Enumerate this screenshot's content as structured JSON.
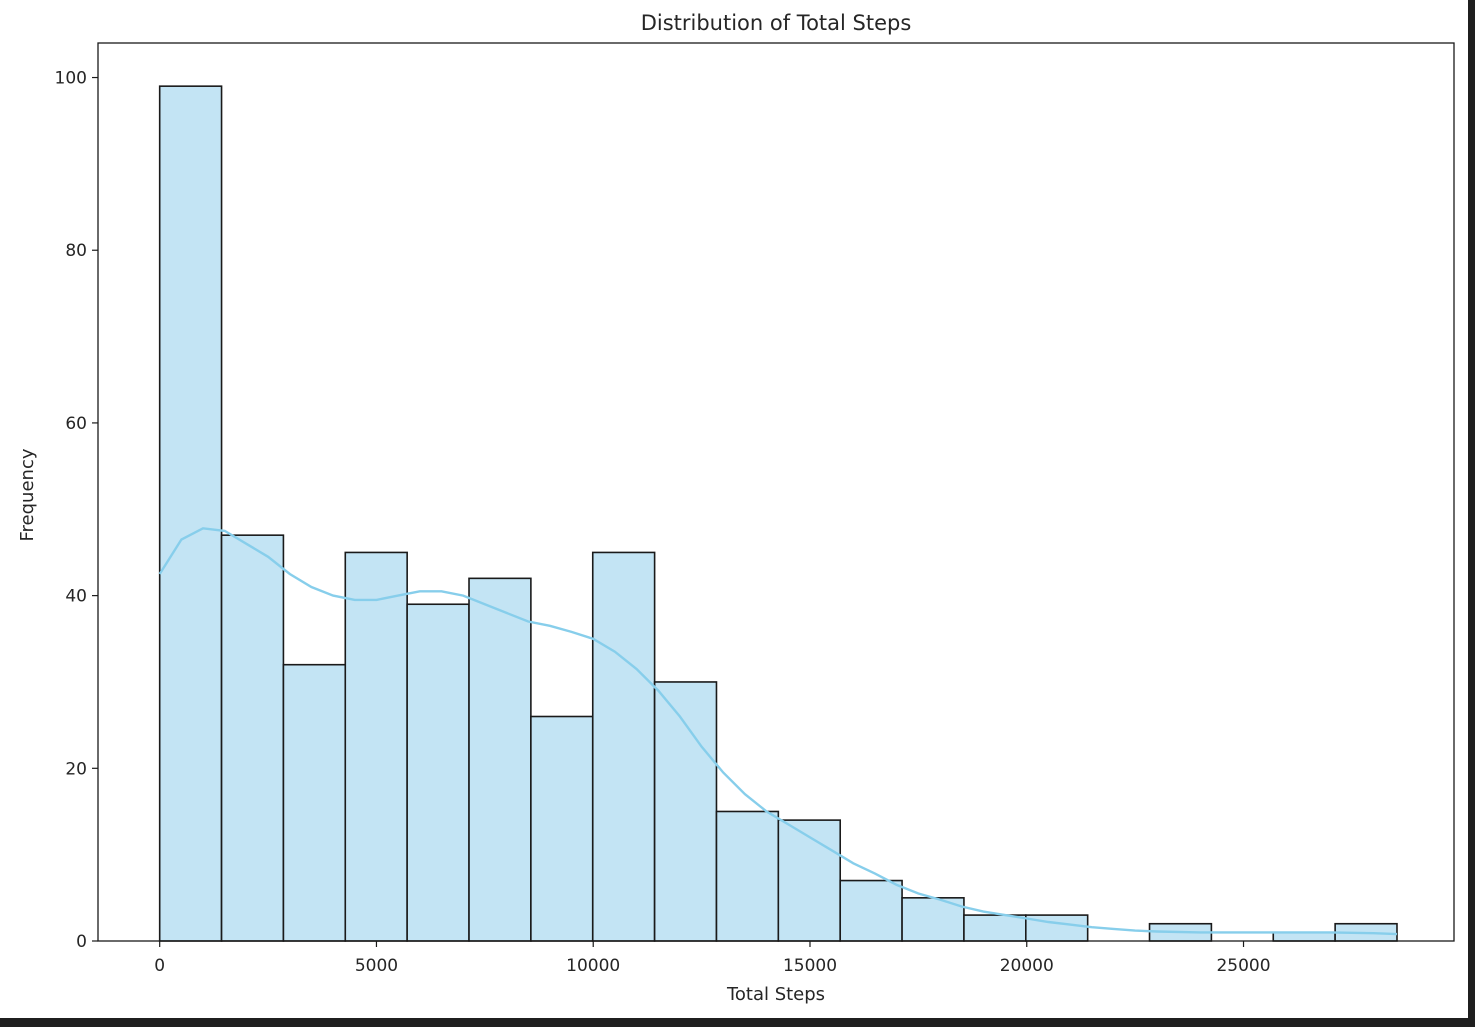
{
  "chart_data": {
    "type": "bar",
    "title": "Distribution of Total Steps",
    "xlabel": "Total Steps",
    "ylabel": "Frequency",
    "xlim": [
      -1423,
      29855
    ],
    "ylim": [
      0,
      104
    ],
    "xticks": [
      0,
      5000,
      10000,
      15000,
      20000,
      25000
    ],
    "yticks": [
      0,
      20,
      40,
      60,
      80,
      100
    ],
    "grid": false,
    "bin_width": 1427,
    "bins": [
      {
        "start": 0,
        "end": 1427,
        "count": 99
      },
      {
        "start": 1427,
        "end": 2854,
        "count": 47
      },
      {
        "start": 2854,
        "end": 4281,
        "count": 32
      },
      {
        "start": 4281,
        "end": 5708,
        "count": 45
      },
      {
        "start": 5708,
        "end": 7135,
        "count": 39
      },
      {
        "start": 7135,
        "end": 8562,
        "count": 42
      },
      {
        "start": 8562,
        "end": 9989,
        "count": 26
      },
      {
        "start": 9989,
        "end": 11416,
        "count": 45
      },
      {
        "start": 11416,
        "end": 12843,
        "count": 30
      },
      {
        "start": 12843,
        "end": 14270,
        "count": 15
      },
      {
        "start": 14270,
        "end": 15697,
        "count": 14
      },
      {
        "start": 15697,
        "end": 17124,
        "count": 7
      },
      {
        "start": 17124,
        "end": 18551,
        "count": 5
      },
      {
        "start": 18551,
        "end": 19978,
        "count": 3
      },
      {
        "start": 19978,
        "end": 21405,
        "count": 3
      },
      {
        "start": 21405,
        "end": 22832,
        "count": 0
      },
      {
        "start": 22832,
        "end": 24259,
        "count": 2
      },
      {
        "start": 24259,
        "end": 25686,
        "count": 0
      },
      {
        "start": 25686,
        "end": 27113,
        "count": 1
      },
      {
        "start": 27113,
        "end": 28540,
        "count": 2
      }
    ],
    "kde": {
      "x": [
        0,
        500,
        1000,
        1500,
        2000,
        2500,
        3000,
        3500,
        4000,
        4500,
        5000,
        5500,
        6000,
        6500,
        7000,
        7500,
        8000,
        8500,
        9000,
        9500,
        10000,
        10500,
        11000,
        11500,
        12000,
        12500,
        13000,
        13500,
        14000,
        14500,
        15000,
        15500,
        16000,
        16500,
        17000,
        17500,
        18000,
        18500,
        19000,
        19500,
        20000,
        20500,
        21000,
        21500,
        22000,
        22500,
        23000,
        24000,
        25000,
        26000,
        27000,
        28000,
        28540
      ],
      "y": [
        42.5,
        46.5,
        47.8,
        47.5,
        46.0,
        44.5,
        42.5,
        41.0,
        40.0,
        39.5,
        39.5,
        40.0,
        40.5,
        40.5,
        40.0,
        39.0,
        38.0,
        37.0,
        36.5,
        35.8,
        35.0,
        33.5,
        31.5,
        29.0,
        26.0,
        22.5,
        19.5,
        17.0,
        15.0,
        13.5,
        12.0,
        10.5,
        9.0,
        7.8,
        6.5,
        5.5,
        4.8,
        4.0,
        3.4,
        3.0,
        2.6,
        2.2,
        1.9,
        1.6,
        1.4,
        1.2,
        1.1,
        1.0,
        1.0,
        1.0,
        1.0,
        0.9,
        0.8
      ]
    },
    "colors": {
      "bar_fill": "#c3e4f4",
      "bar_edge": "#1a1a1a",
      "kde_line": "#87ceeb"
    }
  }
}
